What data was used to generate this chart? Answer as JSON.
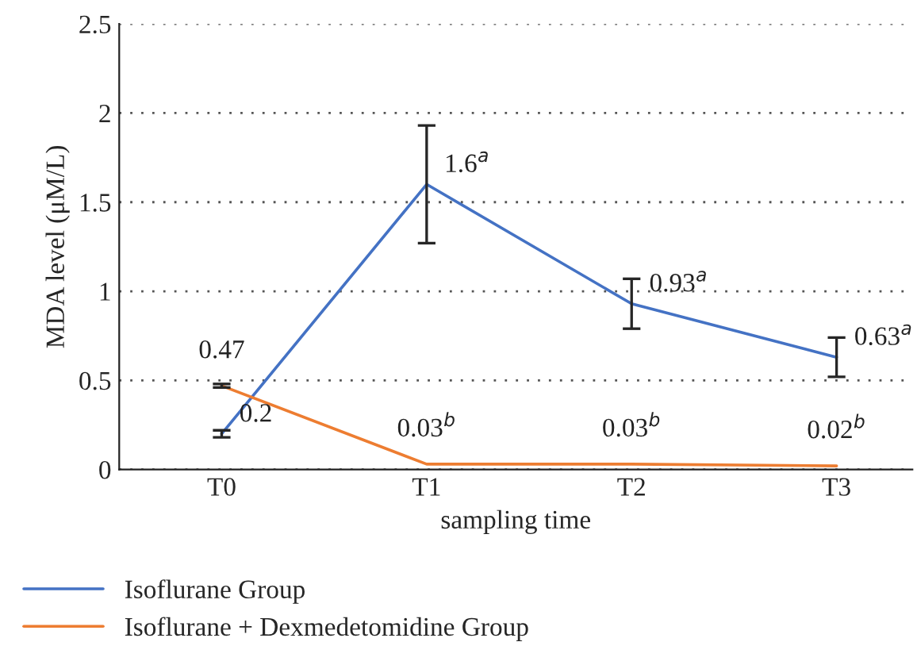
{
  "chart_data": {
    "type": "line",
    "xlabel": "sampling time",
    "ylabel": "MDA level (μM/L)",
    "categories": [
      "T0",
      "T1",
      "T2",
      "T3"
    ],
    "ylim": [
      0,
      2.5
    ],
    "yticks": [
      0,
      0.5,
      1,
      1.5,
      2,
      {
        "value": 2.5,
        "label": "2.5"
      }
    ],
    "grid": "y",
    "legend": "bottom",
    "marker": "none",
    "line_style": "solid",
    "series": [
      {
        "name": "Isoflurane Group",
        "color": "#4472c4",
        "values": [
          0.2,
          1.6,
          0.93,
          0.63
        ],
        "errors": [
          0.02,
          0.33,
          0.14,
          0.11
        ],
        "value_labels": [
          "0.2",
          "1.6$^{a}$",
          "0.93$^{a}$",
          "0.63$^{a}$"
        ]
      },
      {
        "name": "Isoflurane + Dexmedetomidine Group",
        "color": "#ed7d31",
        "values": [
          0.47,
          0.03,
          0.03,
          0.02
        ],
        "errors": [
          0.01,
          null,
          null,
          null
        ],
        "value_labels": [
          "0.47",
          "0.03$^{b}$",
          "0.03$^{b}$",
          "0.02$^{b}$"
        ]
      }
    ]
  }
}
